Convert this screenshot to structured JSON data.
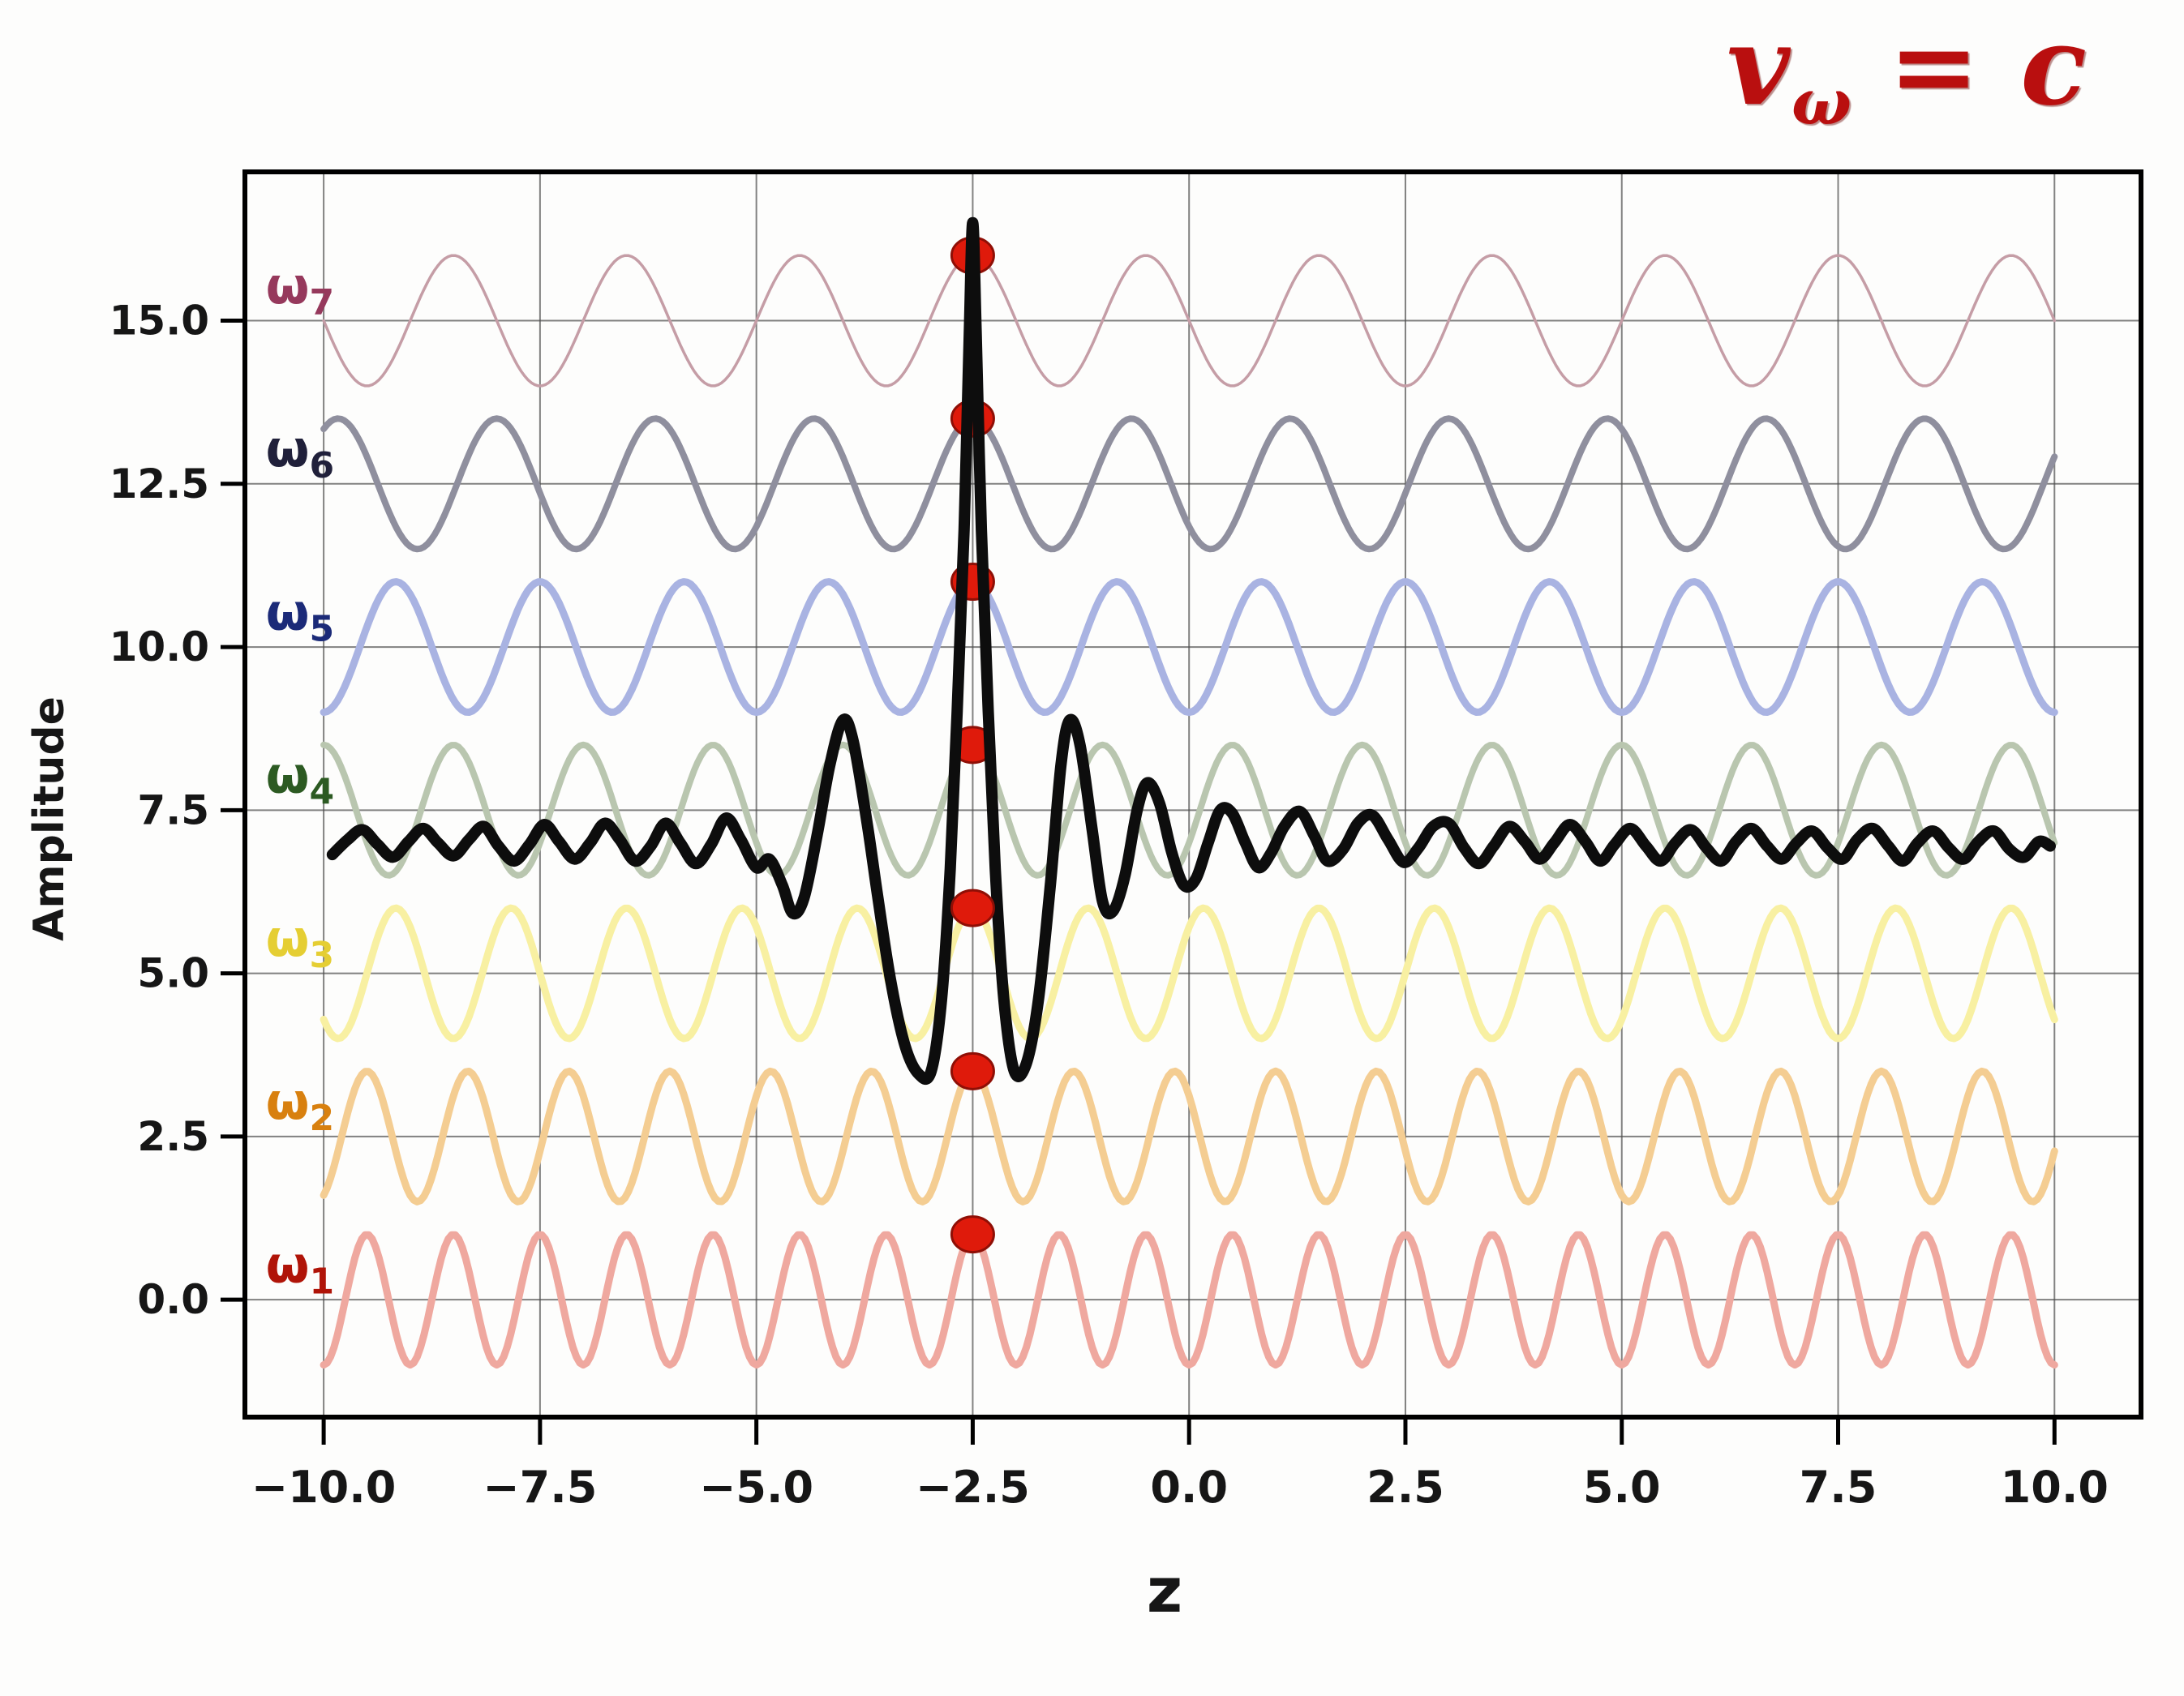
{
  "chart_data": {
    "type": "line",
    "title": "vω = c",
    "title_parts": {
      "var": "v",
      "subscript": "ω",
      "rhs": "= c"
    },
    "title_color": "#b90f0f",
    "xlabel": "z",
    "ylabel": "Amplitude",
    "xlim": [
      -10.91,
      11.0
    ],
    "ylim": [
      -1.8,
      17.28
    ],
    "grid": true,
    "grid_color": "#4d4d4d",
    "frame_color": "#000000",
    "text_color": "#161616",
    "background": "#fdfdfc",
    "x_ticks": {
      "values": [
        -10,
        -7.5,
        -5,
        -2.5,
        0,
        2.5,
        5,
        7.5,
        10
      ],
      "labels": [
        "−10.0",
        "−7.5",
        "−5.0",
        "−2.5",
        "0.0",
        "2.5",
        "5.0",
        "7.5",
        "10.0"
      ]
    },
    "y_ticks": {
      "values": [
        0,
        2.5,
        5,
        7.5,
        10,
        12.5,
        15
      ],
      "labels": [
        "0.0",
        "2.5",
        "5.0",
        "7.5",
        "10.0",
        "12.5",
        "15.0"
      ]
    },
    "z_range": [
      -10,
      10
    ],
    "component_waves": [
      {
        "name": "omega-1",
        "label": "ω",
        "subscript": "1",
        "baseline": 0.0,
        "amplitude": 1,
        "wavelength": 1.0,
        "color": "#efa89f",
        "stroke_width": 9,
        "label_color": "#b01408",
        "label_z": -10.67,
        "label_y": 0.27
      },
      {
        "name": "omega-2",
        "label": "ω",
        "subscript": "2",
        "baseline": 2.5,
        "amplitude": 1,
        "wavelength": 1.1667,
        "color": "#f4cd92",
        "stroke_width": 9,
        "label_color": "#d8800f",
        "label_z": -10.67,
        "label_y": 2.77
      },
      {
        "name": "omega-3",
        "label": "ω",
        "subscript": "3",
        "baseline": 5.0,
        "amplitude": 1,
        "wavelength": 1.3333,
        "color": "#f8f0a2",
        "stroke_width": 9,
        "label_color": "#e5ce33",
        "label_z": -10.67,
        "label_y": 5.27
      },
      {
        "name": "omega-4",
        "label": "ω",
        "subscript": "4",
        "baseline": 7.5,
        "amplitude": 1,
        "wavelength": 1.5,
        "color": "#b9c6af",
        "stroke_width": 8,
        "label_color": "#2c5a22",
        "label_z": -10.67,
        "label_y": 7.77
      },
      {
        "name": "omega-5",
        "label": "ω",
        "subscript": "5",
        "baseline": 10.0,
        "amplitude": 1,
        "wavelength": 1.6667,
        "color": "#a9b3e2",
        "stroke_width": 9,
        "label_color": "#1b2a78",
        "label_z": -10.67,
        "label_y": 10.27
      },
      {
        "name": "omega-6",
        "label": "ω",
        "subscript": "6",
        "baseline": 12.5,
        "amplitude": 1,
        "wavelength": 1.8333,
        "color": "#8f8f9e",
        "stroke_width": 8,
        "label_color": "#20203a",
        "label_z": -10.67,
        "label_y": 12.77
      },
      {
        "name": "omega-7",
        "label": "ω",
        "subscript": "7",
        "baseline": 15.0,
        "amplitude": 1,
        "wavelength": 2.0,
        "color": "#c59da6",
        "stroke_width": 3.5,
        "label_color": "#96395c",
        "label_z": -10.67,
        "label_y": 15.27
      }
    ],
    "phase_markers": {
      "z": -2.5,
      "color": "#df1a0b",
      "edge_color": "#8f0f06",
      "y_values_below_packet": [
        16,
        13.5,
        11,
        8.5
      ],
      "y_values_above_packet": [
        6,
        3.5,
        1
      ]
    },
    "packet": {
      "name": "superposition",
      "color": "#0d0d0d",
      "stroke_width": 14,
      "points": [
        [
          -9.9,
          6.82
        ],
        [
          -9.72,
          7.05
        ],
        [
          -9.55,
          7.2
        ],
        [
          -9.38,
          6.98
        ],
        [
          -9.2,
          6.78
        ],
        [
          -9.02,
          7.02
        ],
        [
          -8.85,
          7.22
        ],
        [
          -8.68,
          7.0
        ],
        [
          -8.5,
          6.8
        ],
        [
          -8.32,
          7.05
        ],
        [
          -8.15,
          7.25
        ],
        [
          -7.98,
          6.95
        ],
        [
          -7.8,
          6.72
        ],
        [
          -7.62,
          6.98
        ],
        [
          -7.45,
          7.28
        ],
        [
          -7.28,
          7.02
        ],
        [
          -7.1,
          6.75
        ],
        [
          -6.92,
          7.0
        ],
        [
          -6.75,
          7.3
        ],
        [
          -6.58,
          7.05
        ],
        [
          -6.4,
          6.72
        ],
        [
          -6.22,
          6.95
        ],
        [
          -6.05,
          7.3
        ],
        [
          -5.88,
          7.0
        ],
        [
          -5.7,
          6.68
        ],
        [
          -5.52,
          6.98
        ],
        [
          -5.35,
          7.38
        ],
        [
          -5.18,
          7.05
        ],
        [
          -5.0,
          6.62
        ],
        [
          -4.85,
          6.75
        ],
        [
          -4.7,
          6.35
        ],
        [
          -4.58,
          5.92
        ],
        [
          -4.45,
          6.15
        ],
        [
          -4.3,
          7.1
        ],
        [
          -4.15,
          8.2
        ],
        [
          -4.0,
          8.88
        ],
        [
          -3.88,
          8.55
        ],
        [
          -3.72,
          7.3
        ],
        [
          -3.6,
          6.2
        ],
        [
          -3.45,
          4.9
        ],
        [
          -3.28,
          3.88
        ],
        [
          -3.12,
          3.45
        ],
        [
          -2.98,
          3.5
        ],
        [
          -2.86,
          4.6
        ],
        [
          -2.76,
          6.6
        ],
        [
          -2.68,
          9.0
        ],
        [
          -2.6,
          11.8
        ],
        [
          -2.54,
          14.8
        ],
        [
          -2.5,
          16.5
        ],
        [
          -2.46,
          14.8
        ],
        [
          -2.4,
          11.8
        ],
        [
          -2.32,
          9.0
        ],
        [
          -2.24,
          6.6
        ],
        [
          -2.14,
          4.6
        ],
        [
          -2.02,
          3.5
        ],
        [
          -1.88,
          3.62
        ],
        [
          -1.74,
          4.6
        ],
        [
          -1.6,
          6.4
        ],
        [
          -1.48,
          8.2
        ],
        [
          -1.38,
          8.88
        ],
        [
          -1.26,
          8.5
        ],
        [
          -1.12,
          7.2
        ],
        [
          -1.0,
          6.1
        ],
        [
          -0.88,
          5.95
        ],
        [
          -0.74,
          6.5
        ],
        [
          -0.6,
          7.5
        ],
        [
          -0.48,
          7.92
        ],
        [
          -0.34,
          7.6
        ],
        [
          -0.2,
          6.85
        ],
        [
          -0.06,
          6.35
        ],
        [
          0.08,
          6.45
        ],
        [
          0.22,
          7.0
        ],
        [
          0.36,
          7.5
        ],
        [
          0.5,
          7.45
        ],
        [
          0.65,
          7.0
        ],
        [
          0.8,
          6.62
        ],
        [
          0.95,
          6.85
        ],
        [
          1.1,
          7.25
        ],
        [
          1.28,
          7.48
        ],
        [
          1.45,
          7.1
        ],
        [
          1.6,
          6.72
        ],
        [
          1.78,
          6.9
        ],
        [
          1.95,
          7.3
        ],
        [
          2.12,
          7.42
        ],
        [
          2.3,
          7.05
        ],
        [
          2.48,
          6.7
        ],
        [
          2.65,
          6.92
        ],
        [
          2.82,
          7.25
        ],
        [
          3.0,
          7.3
        ],
        [
          3.18,
          6.92
        ],
        [
          3.35,
          6.68
        ],
        [
          3.52,
          6.95
        ],
        [
          3.7,
          7.25
        ],
        [
          3.88,
          7.02
        ],
        [
          4.05,
          6.75
        ],
        [
          4.22,
          7.0
        ],
        [
          4.4,
          7.28
        ],
        [
          4.58,
          7.02
        ],
        [
          4.75,
          6.72
        ],
        [
          4.92,
          6.98
        ],
        [
          5.1,
          7.22
        ],
        [
          5.28,
          6.95
        ],
        [
          5.45,
          6.72
        ],
        [
          5.62,
          7.0
        ],
        [
          5.8,
          7.2
        ],
        [
          5.98,
          6.92
        ],
        [
          6.15,
          6.72
        ],
        [
          6.32,
          7.02
        ],
        [
          6.5,
          7.22
        ],
        [
          6.68,
          6.95
        ],
        [
          6.85,
          6.75
        ],
        [
          7.02,
          7.0
        ],
        [
          7.2,
          7.18
        ],
        [
          7.38,
          6.92
        ],
        [
          7.55,
          6.75
        ],
        [
          7.72,
          7.05
        ],
        [
          7.9,
          7.22
        ],
        [
          8.08,
          6.95
        ],
        [
          8.25,
          6.72
        ],
        [
          8.42,
          7.0
        ],
        [
          8.6,
          7.18
        ],
        [
          8.78,
          6.92
        ],
        [
          8.95,
          6.75
        ],
        [
          9.12,
          7.02
        ],
        [
          9.3,
          7.18
        ],
        [
          9.48,
          6.9
        ],
        [
          9.65,
          6.78
        ],
        [
          9.82,
          7.02
        ],
        [
          9.95,
          6.95
        ]
      ]
    }
  }
}
